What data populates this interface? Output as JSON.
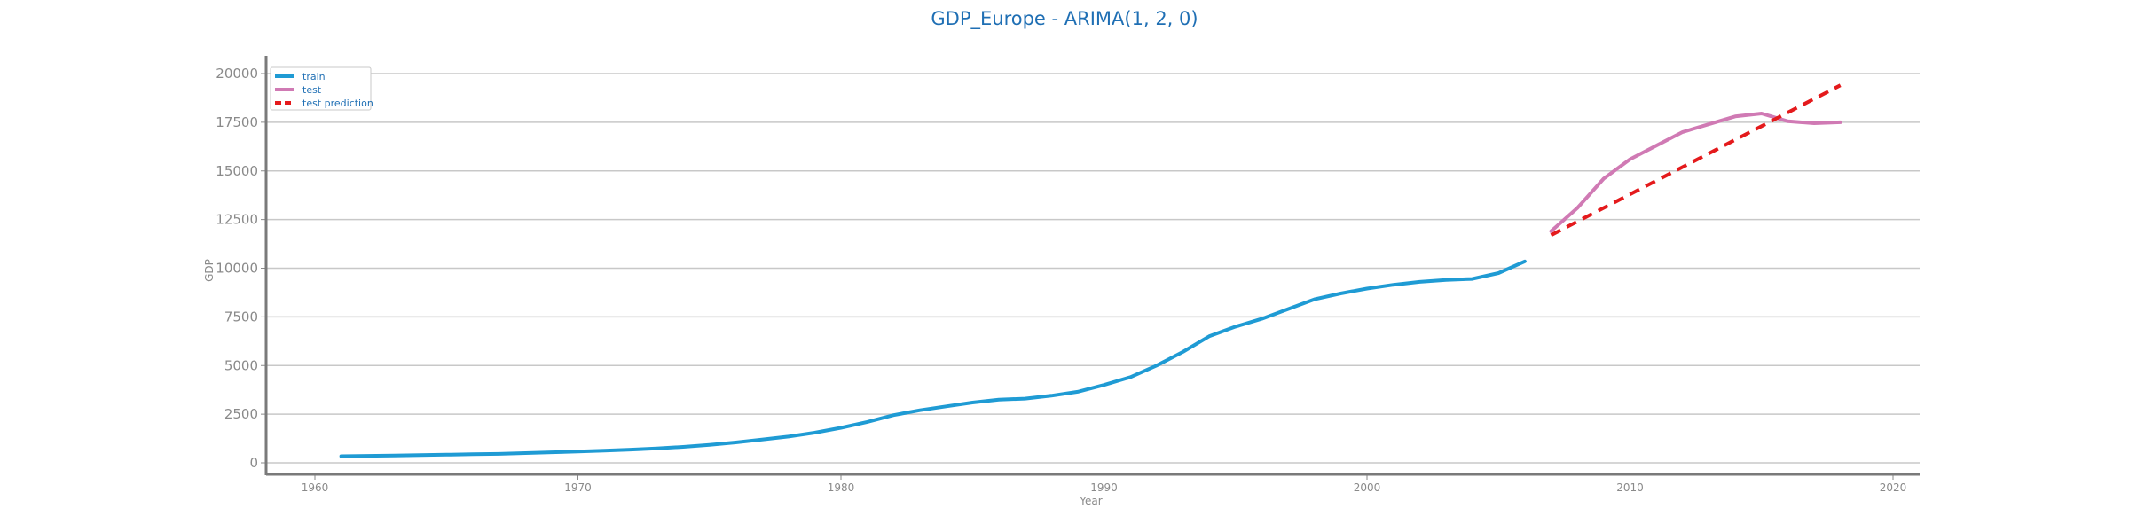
{
  "chart_data": {
    "type": "line",
    "title": "GDP_Europe - ARIMA(1, 2, 0)",
    "xlabel": "Year",
    "ylabel": "GDP",
    "xlim": [
      1958,
      2021
    ],
    "ylim": [
      -500,
      21000
    ],
    "xticks": [
      1960,
      1970,
      1980,
      1990,
      2000,
      2010,
      2020
    ],
    "yticks": [
      0,
      2500,
      5000,
      7500,
      10000,
      12500,
      15000,
      17500,
      20000
    ],
    "grid": "horizontal",
    "legend_position": "top-left",
    "series": [
      {
        "name": "train",
        "color": "#1f9bd4",
        "style": "solid",
        "x": [
          1961,
          1962,
          1963,
          1964,
          1965,
          1966,
          1967,
          1968,
          1969,
          1970,
          1971,
          1972,
          1973,
          1974,
          1975,
          1976,
          1977,
          1978,
          1979,
          1980,
          1981,
          1982,
          1983,
          1984,
          1985,
          1986,
          1987,
          1988,
          1989,
          1990,
          1991,
          1992,
          1993,
          1994,
          1995,
          1996,
          1997,
          1998,
          1999,
          2000,
          2001,
          2002,
          2003,
          2004,
          2005,
          2006
        ],
        "y": [
          340,
          360,
          380,
          400,
          420,
          440,
          460,
          500,
          540,
          580,
          630,
          680,
          740,
          820,
          920,
          1050,
          1200,
          1350,
          1550,
          1800,
          2100,
          2450,
          2700,
          2900,
          3100,
          3250,
          3300,
          3450,
          3650,
          4000,
          4400,
          5000,
          5700,
          6500,
          7000,
          7400,
          7900,
          8400,
          8700,
          8950,
          9150,
          9300,
          9400,
          9450,
          9750,
          10350
        ]
      },
      {
        "name": "test",
        "color": "#d07ab4",
        "style": "solid",
        "x": [
          2007,
          2008,
          2009,
          2010,
          2011,
          2012,
          2013,
          2014,
          2015,
          2016,
          2017,
          2018
        ],
        "y": [
          11900,
          13100,
          14600,
          15600,
          16300,
          17000,
          17400,
          17800,
          17950,
          17550,
          17450,
          17500
        ]
      },
      {
        "name": "test prediction",
        "color": "#e41a1c",
        "style": "dashed",
        "x": [
          2007,
          2008,
          2009,
          2010,
          2011,
          2012,
          2013,
          2014,
          2015,
          2016,
          2017,
          2018
        ],
        "y": [
          11700,
          12400,
          13100,
          13800,
          14500,
          15200,
          15900,
          16600,
          17300,
          18000,
          18700,
          19400
        ]
      }
    ]
  }
}
